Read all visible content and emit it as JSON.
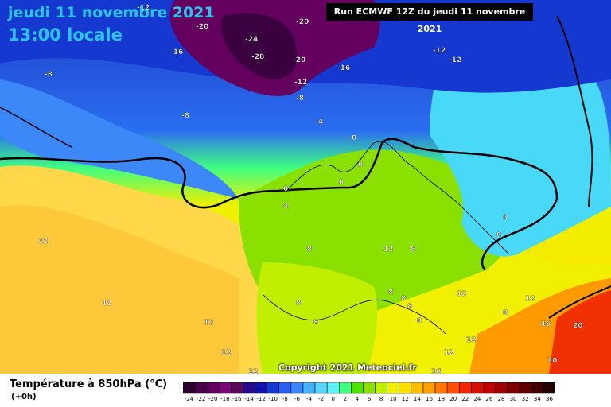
{
  "header": {
    "date_title": "jeudi 11 novembre 2021",
    "time_title": "13:00 locale",
    "run_info": "Run ECMWF 12Z du jeudi 11 novembre 2021"
  },
  "footer": {
    "copyright": "Copyright 2021 Meteociel.fr",
    "legend_title": "Température à 850hPa (°C)",
    "legend_subtitle": "(+0h)"
  },
  "color_scale": {
    "labels": [
      "-24",
      "-22",
      "-20",
      "-18",
      "-16",
      "-14",
      "-12",
      "-10",
      "-8",
      "-6",
      "-4",
      "-2",
      "0",
      "2",
      "4",
      "6",
      "8",
      "10",
      "12",
      "14",
      "16",
      "18",
      "20",
      "22",
      "24",
      "26",
      "28",
      "30",
      "32",
      "34",
      "36"
    ],
    "colors": [
      "#2d0030",
      "#4a0048",
      "#64005e",
      "#7a0875",
      "#5a0858",
      "#2a0a8a",
      "#1010b0",
      "#1438d0",
      "#2a5ef0",
      "#3c88f8",
      "#48b0f8",
      "#5ad6f8",
      "#60f0f8",
      "#40ff80",
      "#50e000",
      "#8ae000",
      "#c0f000",
      "#f0f000",
      "#ffe000",
      "#ffc000",
      "#ffa000",
      "#ff7800",
      "#ff5000",
      "#f02800",
      "#d81000",
      "#c00000",
      "#a00000",
      "#800000",
      "#600000",
      "#400000",
      "#200000"
    ]
  },
  "isotherm_labels": [
    {
      "text": "-12",
      "lon": "north"
    },
    {
      "text": "-20"
    },
    {
      "text": "-24"
    },
    {
      "text": "-28"
    },
    {
      "text": "-20"
    },
    {
      "text": "-20"
    },
    {
      "text": "-16"
    },
    {
      "text": "-16"
    },
    {
      "text": "-8"
    },
    {
      "text": "-12"
    },
    {
      "text": "-12"
    },
    {
      "text": "-12"
    },
    {
      "text": "-8"
    },
    {
      "text": "-8"
    },
    {
      "text": "-4"
    },
    {
      "text": "0"
    },
    {
      "text": "0"
    },
    {
      "text": "0"
    },
    {
      "text": "0"
    },
    {
      "text": "4"
    },
    {
      "text": "0"
    },
    {
      "text": "0"
    },
    {
      "text": "12"
    },
    {
      "text": "12"
    },
    {
      "text": "8"
    },
    {
      "text": "12"
    },
    {
      "text": "8"
    },
    {
      "text": "12"
    },
    {
      "text": "8"
    },
    {
      "text": "8"
    },
    {
      "text": "8"
    },
    {
      "text": "8"
    },
    {
      "text": "8"
    },
    {
      "text": "12"
    },
    {
      "text": "8"
    },
    {
      "text": "12"
    },
    {
      "text": "12"
    },
    {
      "text": "8"
    },
    {
      "text": "12"
    },
    {
      "text": "12"
    },
    {
      "text": "16"
    },
    {
      "text": "20"
    },
    {
      "text": "20"
    },
    {
      "text": "12"
    },
    {
      "text": "16"
    }
  ]
}
